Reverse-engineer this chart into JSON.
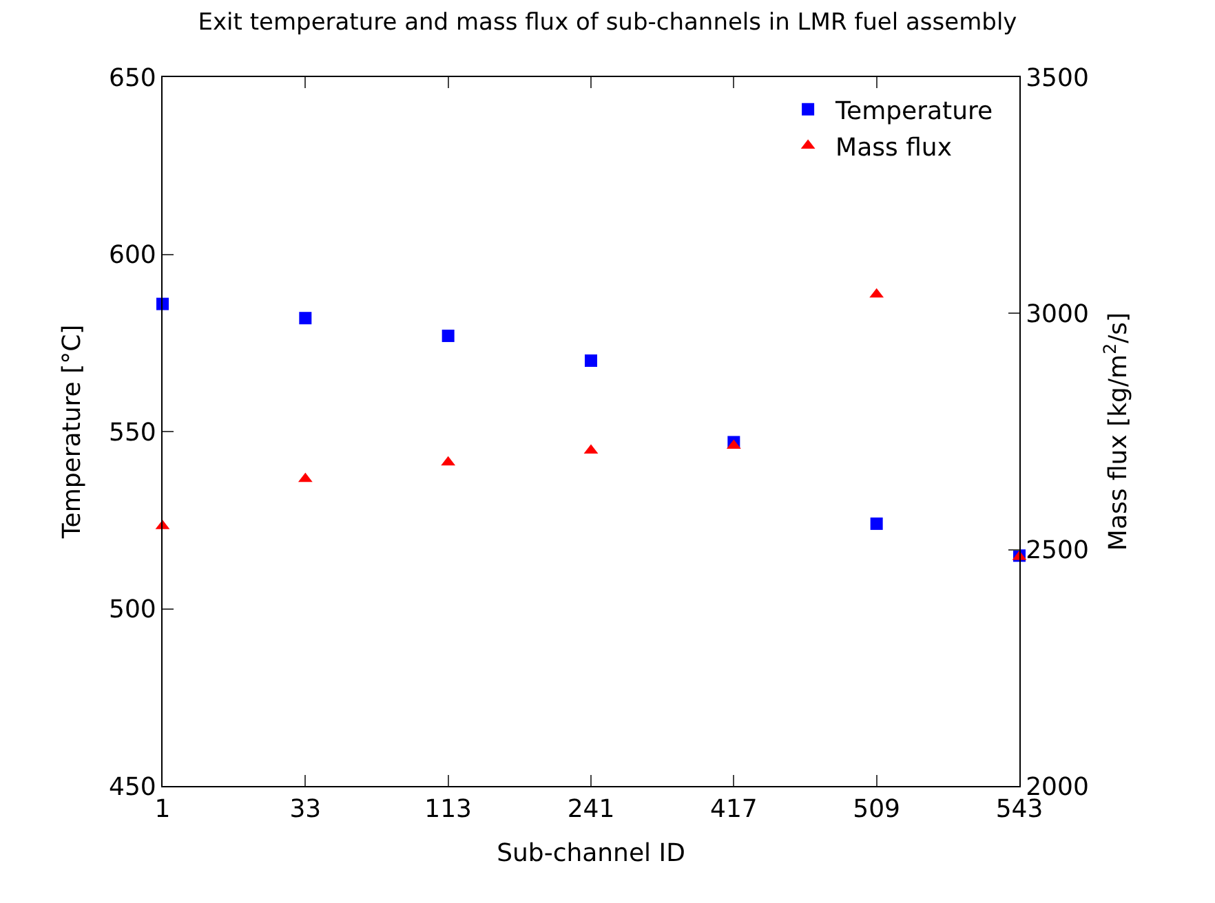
{
  "chart_data": {
    "type": "scatter",
    "title": "Exit temperature and mass flux of sub-channels in LMR fuel assembly",
    "xlabel": "Sub-channel ID",
    "ylabel": "Temperature [°C]",
    "y2label": "Mass flux [kg/m$^{2}$/s]",
    "categories": [
      "1",
      "33",
      "113",
      "241",
      "417",
      "509",
      "543"
    ],
    "series": [
      {
        "name": "Temperature",
        "color": "#0000ff",
        "marker": "square",
        "values": [
          586,
          582,
          577,
          570,
          547,
          524,
          515
        ]
      },
      {
        "name": "Mass flux",
        "color": "#ff0000",
        "marker": "triangle",
        "axis": "y2",
        "values": [
          2550,
          2650,
          2685,
          2710,
          2720,
          3040,
          2485
        ]
      }
    ],
    "ylim": [
      450,
      650
    ],
    "yticks": [
      450,
      500,
      550,
      600,
      650
    ],
    "y2lim": [
      2000,
      3500
    ],
    "y2ticks": [
      2000,
      2500,
      3000,
      3500
    ],
    "legend": "top right"
  }
}
